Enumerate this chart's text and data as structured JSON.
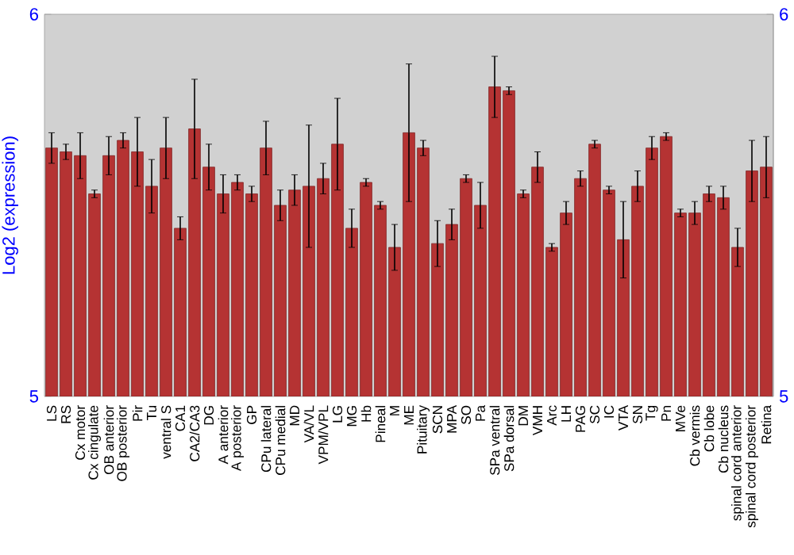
{
  "chart_data": {
    "type": "bar",
    "ylabel": "Log2 (expression)",
    "categories": [
      "LS",
      "RS",
      "Cx motor",
      "Cx cingulate",
      "OB anterior",
      "OB posterior",
      "Pir",
      "Tu",
      "ventral S",
      "CA1",
      "CA2/CA3",
      "DG",
      "A anterior",
      "A posterior",
      "GP",
      "CPu lateral",
      "CPu medial",
      "MD",
      "VA/VL",
      "VPM/VPL",
      "LG",
      "MG",
      "Hb",
      "Pineal",
      "M",
      "ME",
      "Pituitary",
      "SCN",
      "MPA",
      "SO",
      "Pa",
      "SPa ventral",
      "SPa dorsal",
      "DM",
      "VMH",
      "Arc",
      "LH",
      "PAG",
      "SC",
      "IC",
      "VTA",
      "SN",
      "Tg",
      "Pn",
      "MVe",
      "Cb vermis",
      "Cb lobe",
      "Cb nucleus",
      "spinal cord anterior",
      "spinal cord posterior",
      "Retina"
    ],
    "values": [
      5.65,
      5.64,
      5.63,
      5.53,
      5.63,
      5.67,
      5.64,
      5.55,
      5.65,
      5.44,
      5.7,
      5.6,
      5.53,
      5.56,
      5.53,
      5.65,
      5.5,
      5.54,
      5.55,
      5.57,
      5.66,
      5.44,
      5.56,
      5.5,
      5.39,
      5.69,
      5.65,
      5.4,
      5.45,
      5.57,
      5.5,
      5.81,
      5.8,
      5.53,
      5.6,
      5.39,
      5.48,
      5.57,
      5.66,
      5.54,
      5.41,
      5.55,
      5.65,
      5.68,
      5.48,
      5.48,
      5.53,
      5.52,
      5.39,
      5.59,
      5.6
    ],
    "errors": [
      0.04,
      0.02,
      0.06,
      0.01,
      0.05,
      0.02,
      0.09,
      0.07,
      0.08,
      0.03,
      0.13,
      0.06,
      0.05,
      0.02,
      0.02,
      0.07,
      0.04,
      0.04,
      0.16,
      0.04,
      0.12,
      0.05,
      0.01,
      0.01,
      0.06,
      0.18,
      0.02,
      0.06,
      0.04,
      0.01,
      0.06,
      0.08,
      0.01,
      0.01,
      0.04,
      0.01,
      0.03,
      0.02,
      0.01,
      0.01,
      0.1,
      0.04,
      0.03,
      0.01,
      0.01,
      0.03,
      0.02,
      0.03,
      0.05,
      0.08,
      0.08
    ],
    "color": "#b53333",
    "ylim": [
      5,
      6
    ],
    "yticks": [
      5,
      6
    ],
    "y2lim": [
      5,
      6
    ],
    "y2ticks": [
      5,
      6
    ],
    "grid": false
  }
}
